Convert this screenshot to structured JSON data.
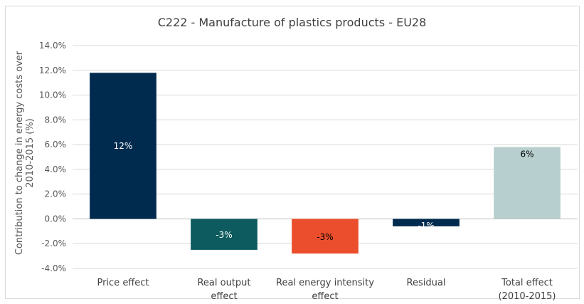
{
  "chart_data": {
    "type": "bar",
    "title": "C222 - Manufacture of plastics products - EU28",
    "ylabel": "Contribution to change in energy costs over 2010-2015 (%)",
    "xlabel": "",
    "ylim": [
      -4,
      14
    ],
    "ytick_step": 2,
    "ytick_labels": [
      "-4.0%",
      "-2.0%",
      "0.0%",
      "2.0%",
      "4.0%",
      "6.0%",
      "8.0%",
      "10.0%",
      "12.0%",
      "14.0%"
    ],
    "grid": true,
    "categories": [
      [
        "Price effect"
      ],
      [
        "Real output",
        "effect"
      ],
      [
        "Real energy intensity",
        "effect"
      ],
      [
        "Residual"
      ],
      [
        "Total effect",
        "(2010-2015)"
      ]
    ],
    "values": [
      11.8,
      -2.5,
      -2.8,
      -0.6,
      5.8
    ],
    "data_labels": [
      "12%",
      "-3%",
      "-3%",
      "-1%",
      "6%"
    ],
    "colors": [
      "#002b4f",
      "#0d5b5e",
      "#ea4e2c",
      "#002b4f",
      "#b7cfcf"
    ],
    "label_colors": [
      "#ffffff",
      "#ffffff",
      "#000000",
      "#ffffff",
      "#000000"
    ]
  }
}
